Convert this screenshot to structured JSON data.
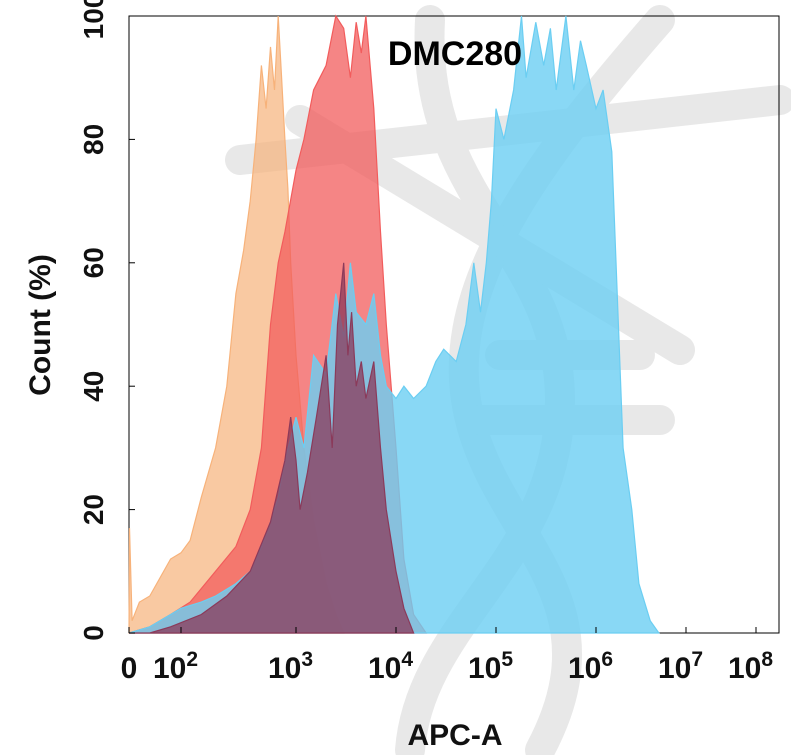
{
  "chart_data": {
    "type": "area",
    "title": "DMC280",
    "xlabel": "APC-A",
    "ylabel": "Count (%)",
    "x_scale": "biexponential",
    "xlim": [
      0,
      100000000
    ],
    "ylim": [
      0,
      100
    ],
    "grid": false,
    "legend": "none",
    "x_ticks": [
      {
        "value": 0,
        "base": "0",
        "exp": ""
      },
      {
        "value": 100,
        "base": "10",
        "exp": "2"
      },
      {
        "value": 1000,
        "base": "10",
        "exp": "3"
      },
      {
        "value": 10000,
        "base": "10",
        "exp": "4"
      },
      {
        "value": 100000,
        "base": "10",
        "exp": "5"
      },
      {
        "value": 1000000,
        "base": "10",
        "exp": "6"
      },
      {
        "value": 10000000,
        "base": "10",
        "exp": "7"
      },
      {
        "value": 100000000,
        "base": "10",
        "exp": "8"
      }
    ],
    "y_ticks": [
      0,
      20,
      40,
      60,
      80,
      100
    ],
    "series": [
      {
        "color": "#f7b27a",
        "points": [
          [
            0,
            0
          ],
          [
            1,
            17
          ],
          [
            6,
            2
          ],
          [
            20,
            5
          ],
          [
            40,
            6
          ],
          [
            60,
            9
          ],
          [
            80,
            12
          ],
          [
            100,
            13
          ],
          [
            120,
            15
          ],
          [
            150,
            22
          ],
          [
            200,
            30
          ],
          [
            250,
            40
          ],
          [
            300,
            55
          ],
          [
            350,
            62
          ],
          [
            400,
            70
          ],
          [
            450,
            80
          ],
          [
            500,
            92
          ],
          [
            550,
            85
          ],
          [
            600,
            95
          ],
          [
            650,
            88
          ],
          [
            700,
            100
          ],
          [
            750,
            90
          ],
          [
            800,
            80
          ],
          [
            850,
            72
          ],
          [
            900,
            60
          ],
          [
            1000,
            45
          ],
          [
            1200,
            30
          ],
          [
            1500,
            18
          ],
          [
            2000,
            8
          ],
          [
            2500,
            3
          ],
          [
            3000,
            0
          ]
        ]
      },
      {
        "color": "#f25c5c",
        "points": [
          [
            0,
            0
          ],
          [
            40,
            1
          ],
          [
            80,
            3
          ],
          [
            120,
            5
          ],
          [
            200,
            10
          ],
          [
            300,
            14
          ],
          [
            400,
            20
          ],
          [
            500,
            30
          ],
          [
            600,
            50
          ],
          [
            700,
            60
          ],
          [
            800,
            65
          ],
          [
            1000,
            75
          ],
          [
            1200,
            80
          ],
          [
            1500,
            88
          ],
          [
            2000,
            92
          ],
          [
            2500,
            100
          ],
          [
            3000,
            98
          ],
          [
            3500,
            90
          ],
          [
            4000,
            99
          ],
          [
            4500,
            94
          ],
          [
            5000,
            100
          ],
          [
            6000,
            85
          ],
          [
            7000,
            65
          ],
          [
            8000,
            50
          ],
          [
            10000,
            30
          ],
          [
            12000,
            12
          ],
          [
            15000,
            3
          ],
          [
            20000,
            0
          ]
        ]
      },
      {
        "color": "#6bcef2",
        "points": [
          [
            0,
            0
          ],
          [
            40,
            1
          ],
          [
            80,
            3
          ],
          [
            100,
            4
          ],
          [
            150,
            5
          ],
          [
            200,
            6
          ],
          [
            300,
            8
          ],
          [
            400,
            10
          ],
          [
            500,
            14
          ],
          [
            600,
            18
          ],
          [
            700,
            22
          ],
          [
            800,
            28
          ],
          [
            1000,
            35
          ],
          [
            1200,
            30
          ],
          [
            1500,
            45
          ],
          [
            2000,
            42
          ],
          [
            2500,
            55
          ],
          [
            3000,
            48
          ],
          [
            3500,
            60
          ],
          [
            4000,
            52
          ],
          [
            5000,
            50
          ],
          [
            6000,
            55
          ],
          [
            7000,
            45
          ],
          [
            8000,
            40
          ],
          [
            10000,
            38
          ],
          [
            12000,
            40
          ],
          [
            15000,
            38
          ],
          [
            20000,
            40
          ],
          [
            25000,
            44
          ],
          [
            30000,
            46
          ],
          [
            40000,
            44
          ],
          [
            50000,
            50
          ],
          [
            60000,
            60
          ],
          [
            70000,
            52
          ],
          [
            80000,
            60
          ],
          [
            90000,
            70
          ],
          [
            100000,
            85
          ],
          [
            120000,
            80
          ],
          [
            150000,
            88
          ],
          [
            180000,
            100
          ],
          [
            200000,
            90
          ],
          [
            250000,
            99
          ],
          [
            300000,
            92
          ],
          [
            350000,
            98
          ],
          [
            400000,
            88
          ],
          [
            500000,
            100
          ],
          [
            600000,
            88
          ],
          [
            700000,
            96
          ],
          [
            800000,
            92
          ],
          [
            1000000,
            85
          ],
          [
            1200000,
            88
          ],
          [
            1500000,
            78
          ],
          [
            2000000,
            30
          ],
          [
            2500000,
            20
          ],
          [
            3000000,
            8
          ],
          [
            4000000,
            2
          ],
          [
            5000000,
            0
          ]
        ]
      },
      {
        "color": "#8b3a5a",
        "points": [
          [
            0,
            0
          ],
          [
            40,
            0
          ],
          [
            80,
            1
          ],
          [
            150,
            3
          ],
          [
            250,
            6
          ],
          [
            400,
            10
          ],
          [
            600,
            18
          ],
          [
            800,
            28
          ],
          [
            900,
            35
          ],
          [
            1000,
            28
          ],
          [
            1100,
            20
          ],
          [
            1300,
            26
          ],
          [
            1600,
            35
          ],
          [
            2000,
            45
          ],
          [
            2300,
            30
          ],
          [
            2600,
            50
          ],
          [
            3000,
            60
          ],
          [
            3300,
            45
          ],
          [
            3600,
            52
          ],
          [
            4000,
            40
          ],
          [
            4500,
            44
          ],
          [
            5000,
            38
          ],
          [
            6000,
            44
          ],
          [
            7000,
            30
          ],
          [
            8000,
            20
          ],
          [
            10000,
            10
          ],
          [
            12000,
            4
          ],
          [
            15000,
            0
          ]
        ]
      }
    ]
  }
}
